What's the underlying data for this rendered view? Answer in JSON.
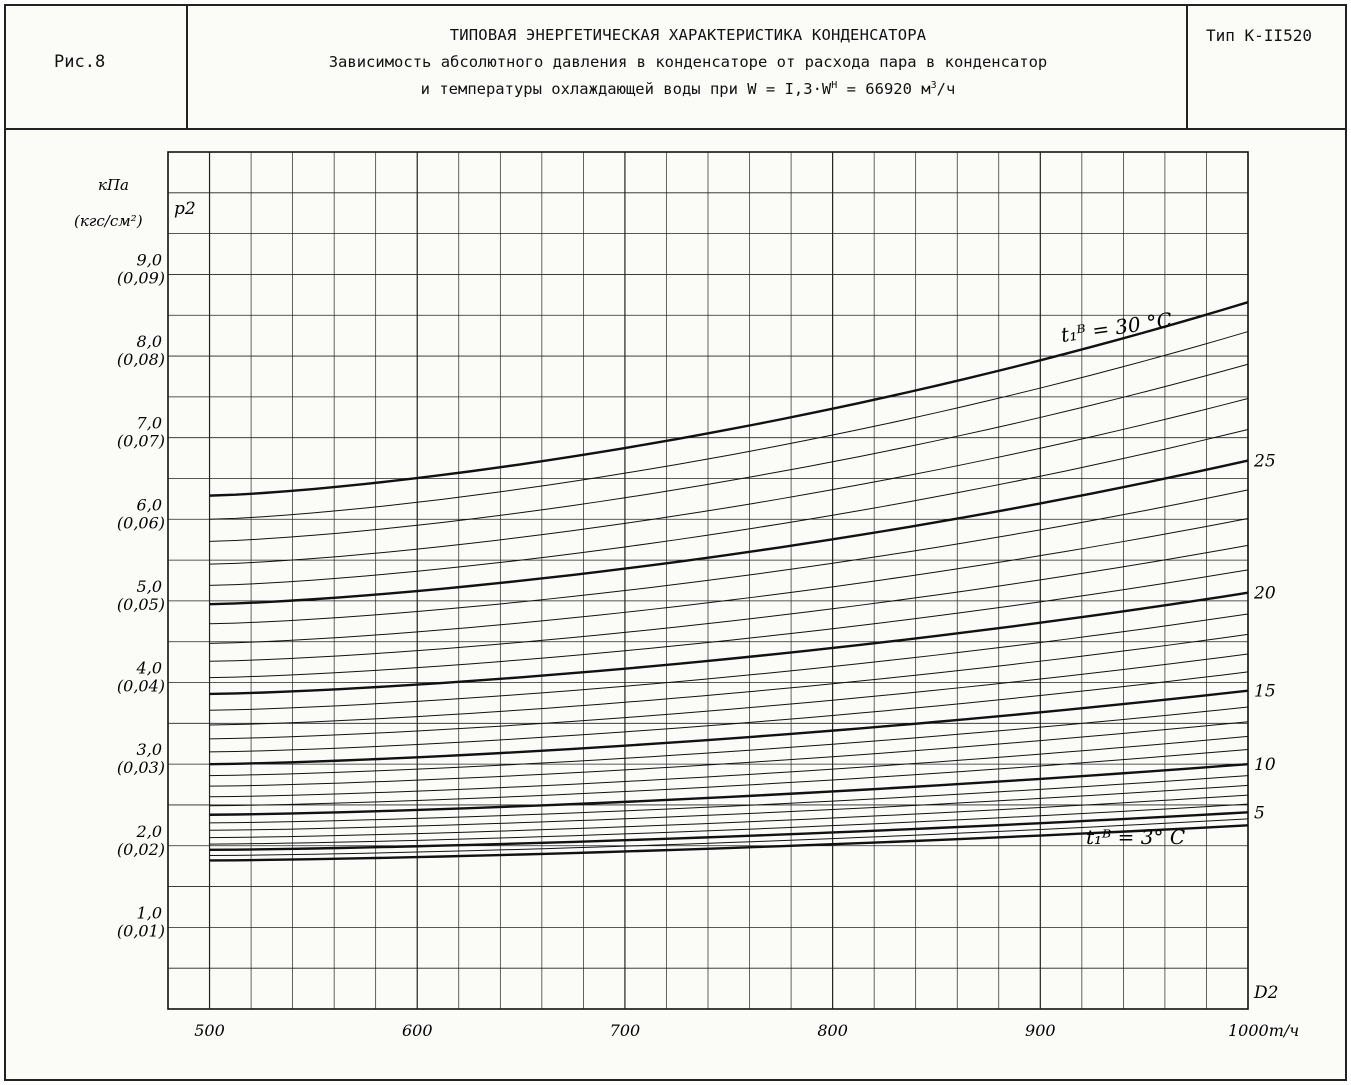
{
  "header": {
    "figure_label": "Рис.8",
    "type_label": "Тип К-II520",
    "title_line1": "ТИПОВАЯ ЭНЕРГЕТИЧЕСКАЯ ХАРАКТЕРИСТИКА КОНДЕНСАТОРА",
    "title_line2": "Зависимость абсолютного давления в конденсаторе от расхода пара в конденсатор",
    "title_line3_pre": "и температуры охлаждающей воды при W = I,3·W",
    "title_line3_sup": "Н",
    "title_line3_mid": " = 66920 м",
    "title_line3_sup2": "3",
    "title_line3_post": "/ч"
  },
  "chart_data": {
    "type": "line",
    "title": "Зависимость абсолютного давления в конденсаторе от расхода пара в конденсатор и температуры охлаждающей воды",
    "xlabel": "D2",
    "x_unit": "т/ч",
    "ylabel": "p2",
    "y_unit_line1": "кПа",
    "y_unit_line2": "(кгс/см²)",
    "xlim": [
      480,
      1000
    ],
    "ylim": [
      0,
      10.5
    ],
    "x_ticks": [
      {
        "value": 500,
        "label": "500"
      },
      {
        "value": 600,
        "label": "600"
      },
      {
        "value": 700,
        "label": "700"
      },
      {
        "value": 800,
        "label": "800"
      },
      {
        "value": 900,
        "label": "900"
      },
      {
        "value": 1000,
        "label": "1000т/ч"
      }
    ],
    "y_ticks": [
      {
        "value": 1,
        "label": "1,0",
        "sub": "(0,01)"
      },
      {
        "value": 2,
        "label": "2,0",
        "sub": "(0,02)"
      },
      {
        "value": 3,
        "label": "3,0",
        "sub": "(0,03)"
      },
      {
        "value": 4,
        "label": "4,0",
        "sub": "(0,04)"
      },
      {
        "value": 5,
        "label": "5,0",
        "sub": "(0,05)"
      },
      {
        "value": 6,
        "label": "6,0",
        "sub": "(0,06)"
      },
      {
        "value": 7,
        "label": "7,0",
        "sub": "(0,07)"
      },
      {
        "value": 8,
        "label": "8,0",
        "sub": "(0,08)"
      },
      {
        "value": 9,
        "label": "9,0",
        "sub": "(0,09)"
      }
    ],
    "grid": true,
    "x": [
      500,
      1000
    ],
    "series": [
      {
        "t": 30,
        "bold": true,
        "values": [
          6.29,
          8.66
        ]
      },
      {
        "t": 29,
        "bold": false,
        "values": [
          6.0,
          8.3
        ]
      },
      {
        "t": 28,
        "bold": false,
        "values": [
          5.73,
          7.9
        ]
      },
      {
        "t": 27,
        "bold": false,
        "values": [
          5.45,
          7.48
        ]
      },
      {
        "t": 26,
        "bold": false,
        "values": [
          5.19,
          7.1
        ]
      },
      {
        "t": 25,
        "bold": true,
        "values": [
          4.96,
          6.72
        ]
      },
      {
        "t": 24,
        "bold": false,
        "values": [
          4.72,
          6.36
        ]
      },
      {
        "t": 23,
        "bold": false,
        "values": [
          4.48,
          6.01
        ]
      },
      {
        "t": 22,
        "bold": false,
        "values": [
          4.26,
          5.68
        ]
      },
      {
        "t": 21,
        "bold": false,
        "values": [
          4.06,
          5.38
        ]
      },
      {
        "t": 20,
        "bold": true,
        "values": [
          3.86,
          5.1
        ]
      },
      {
        "t": 19,
        "bold": false,
        "values": [
          3.66,
          4.84
        ]
      },
      {
        "t": 18,
        "bold": false,
        "values": [
          3.48,
          4.59
        ]
      },
      {
        "t": 17,
        "bold": false,
        "values": [
          3.31,
          4.35
        ]
      },
      {
        "t": 16,
        "bold": false,
        "values": [
          3.15,
          4.13
        ]
      },
      {
        "t": 15,
        "bold": true,
        "values": [
          3.0,
          3.9
        ]
      },
      {
        "t": 14,
        "bold": false,
        "values": [
          2.86,
          3.7
        ]
      },
      {
        "t": 13,
        "bold": false,
        "values": [
          2.73,
          3.52
        ]
      },
      {
        "t": 12,
        "bold": false,
        "values": [
          2.6,
          3.34
        ]
      },
      {
        "t": 11,
        "bold": false,
        "values": [
          2.49,
          3.18
        ]
      },
      {
        "t": 10,
        "bold": true,
        "values": [
          2.38,
          3.0
        ]
      },
      {
        "t": 9,
        "bold": false,
        "values": [
          2.28,
          2.86
        ]
      },
      {
        "t": 8,
        "bold": false,
        "values": [
          2.19,
          2.74
        ]
      },
      {
        "t": 7,
        "bold": false,
        "values": [
          2.1,
          2.62
        ]
      },
      {
        "t": 6,
        "bold": false,
        "values": [
          2.02,
          2.51
        ]
      },
      {
        "t": 5,
        "bold": true,
        "values": [
          1.95,
          2.41
        ]
      },
      {
        "t": 4,
        "bold": false,
        "values": [
          1.88,
          2.33
        ]
      },
      {
        "t": 3,
        "bold": true,
        "values": [
          1.82,
          2.25
        ]
      }
    ],
    "line_labels": [
      {
        "text": "25",
        "t": 25
      },
      {
        "text": "20",
        "t": 20
      },
      {
        "text": "15",
        "t": 15
      },
      {
        "text": "10",
        "t": 10
      },
      {
        "text": "5",
        "t": 5
      }
    ],
    "annotations": [
      {
        "text": "t₁ᴮ = 30 °C",
        "t": 30
      },
      {
        "text": "t₁ᴮ = 3° C",
        "t": 3
      }
    ]
  }
}
